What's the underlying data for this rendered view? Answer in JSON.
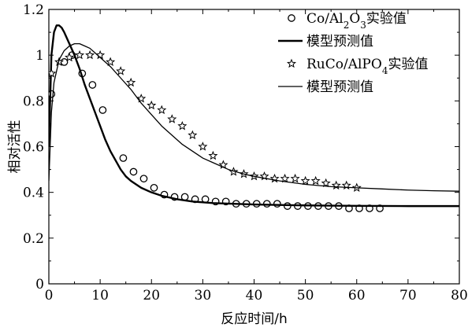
{
  "chart_data": {
    "type": "scatter",
    "xlabel": "反应时间/h",
    "ylabel": "相对活性",
    "xlim": [
      0,
      80
    ],
    "ylim": [
      0,
      1.2
    ],
    "xticks": [
      "0",
      "10",
      "20",
      "30",
      "40",
      "50",
      "60",
      "70",
      "80"
    ],
    "yticks": [
      "0",
      "0.2",
      "0.4",
      "0.6",
      "0.8",
      "1",
      "1.2"
    ],
    "grid": false,
    "legend_position": "top-right",
    "legend": [
      {
        "label": "Co/Al",
        "sub1": "2",
        "mid": "O",
        "sub2": "3",
        "suffix": "实验值",
        "marker": "circle"
      },
      {
        "label": "模型预测值",
        "marker": "thick-line"
      },
      {
        "label": "RuCo/AlPO",
        "sub1": "4",
        "suffix": "实验值",
        "marker": "star"
      },
      {
        "label": "模型预测值",
        "marker": "thin-line"
      }
    ],
    "series": [
      {
        "marker": "circle",
        "x": [
          0.5,
          3,
          4.5,
          6.5,
          8.5,
          10.5,
          14.5,
          16.5,
          18.5,
          20.5,
          22.5,
          24.5,
          26.5,
          28.5,
          30.5,
          32.5,
          34.5,
          36.5,
          38.5,
          40.5,
          42.5,
          44.5,
          46.5,
          48.5,
          50.5,
          52.5,
          54.5,
          56.5,
          58.5,
          60.5,
          62.5,
          64.5
        ],
        "y": [
          0.83,
          0.97,
          1.0,
          0.92,
          0.87,
          0.76,
          0.55,
          0.49,
          0.46,
          0.42,
          0.39,
          0.38,
          0.38,
          0.37,
          0.37,
          0.36,
          0.36,
          0.35,
          0.35,
          0.35,
          0.35,
          0.35,
          0.34,
          0.34,
          0.34,
          0.34,
          0.34,
          0.34,
          0.33,
          0.33,
          0.33,
          0.33
        ]
      },
      {
        "marker": "thick-line",
        "x": [
          0,
          0.5,
          1,
          1.5,
          2,
          2.5,
          3,
          4,
          5,
          6,
          7,
          8,
          9,
          10,
          11,
          12,
          13,
          14,
          15,
          16,
          18,
          20,
          22,
          25,
          28,
          32,
          36,
          40,
          45,
          50,
          55,
          60,
          70,
          80
        ],
        "y": [
          0.6,
          1.0,
          1.1,
          1.13,
          1.13,
          1.12,
          1.1,
          1.05,
          1.0,
          0.94,
          0.87,
          0.81,
          0.75,
          0.69,
          0.63,
          0.58,
          0.54,
          0.5,
          0.47,
          0.45,
          0.42,
          0.4,
          0.385,
          0.37,
          0.36,
          0.353,
          0.35,
          0.347,
          0.345,
          0.343,
          0.342,
          0.341,
          0.34,
          0.34
        ]
      },
      {
        "marker": "star",
        "x": [
          0.5,
          2,
          4,
          6,
          8,
          10,
          12,
          14,
          16,
          18,
          20,
          22,
          24,
          26,
          28,
          30,
          32,
          34,
          36,
          38,
          40,
          42,
          44,
          46,
          48,
          50,
          52,
          54,
          56,
          58,
          60
        ],
        "y": [
          0.92,
          0.97,
          0.99,
          1.0,
          1.0,
          1.0,
          0.97,
          0.93,
          0.88,
          0.81,
          0.78,
          0.76,
          0.72,
          0.69,
          0.65,
          0.6,
          0.56,
          0.52,
          0.49,
          0.48,
          0.47,
          0.47,
          0.46,
          0.46,
          0.46,
          0.45,
          0.45,
          0.44,
          0.43,
          0.43,
          0.42
        ]
      },
      {
        "marker": "thin-line",
        "x": [
          0,
          0.5,
          1,
          2,
          3,
          4,
          5,
          6,
          7,
          8,
          9,
          10,
          12,
          14,
          16,
          18,
          20,
          22,
          24,
          26,
          28,
          30,
          32,
          35,
          38,
          40,
          45,
          50,
          55,
          60,
          65,
          70,
          75,
          80
        ],
        "y": [
          0.45,
          0.75,
          0.88,
          0.98,
          1.02,
          1.04,
          1.05,
          1.05,
          1.04,
          1.03,
          1.01,
          0.99,
          0.95,
          0.9,
          0.85,
          0.79,
          0.74,
          0.69,
          0.65,
          0.61,
          0.58,
          0.55,
          0.53,
          0.5,
          0.48,
          0.47,
          0.45,
          0.435,
          0.425,
          0.42,
          0.415,
          0.41,
          0.407,
          0.405
        ]
      }
    ]
  }
}
